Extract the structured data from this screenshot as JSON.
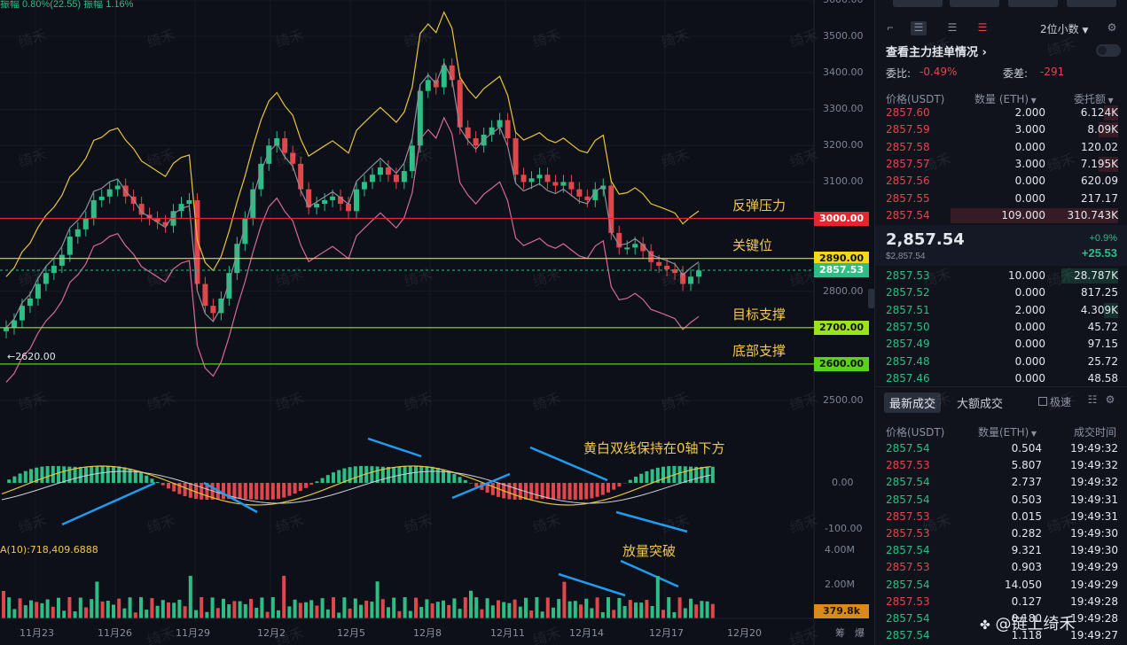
{
  "chart": {
    "top_label": "振幅 0.80%(22.55)  振幅 1.16%",
    "price_ticks": [
      "3600.00",
      "3500.00",
      "3400.00",
      "3300.00",
      "3200.00",
      "3100.00",
      "2800.00",
      "2500.00"
    ],
    "price_tick_values": [
      3600,
      3500,
      3400,
      3300,
      3200,
      3100,
      2800,
      2500
    ],
    "low_marker": "←2620.00",
    "macd_ticks": [
      "0.00",
      "-100.00"
    ],
    "volume_ticks": [
      "4.00M",
      "2.00M"
    ],
    "volume_label": "A(10):718,409.6888",
    "volume_current": "379.8k",
    "dates": [
      "11月23",
      "11月26",
      "11月29",
      "12月2",
      "12月5",
      "12月8",
      "12月11",
      "12月14",
      "12月17",
      "12月20"
    ],
    "axis_corner_labels": [
      "筹",
      "爆"
    ],
    "watermark_text": "绮禾",
    "levels": [
      {
        "label": "3000.00",
        "price": 3000,
        "annotation": "反弹压力",
        "color": "#e5262e"
      },
      {
        "label": "2890.00",
        "price": 2890,
        "annotation": "关键位",
        "color": "#f2d81a"
      },
      {
        "label": "2857.53",
        "price": 2857.53,
        "annotation": "",
        "color": "#2ebd85"
      },
      {
        "label": "2700.00",
        "price": 2700,
        "annotation": "目标支撑",
        "color": "#9be31c"
      },
      {
        "label": "2600.00",
        "price": 2600,
        "annotation": "底部支撑",
        "color": "#58d21a"
      }
    ],
    "macd_annotation": "黄白双线保持在0轴下方",
    "volume_annotation": "放量突破",
    "footer_watermark": "@链上绮禾"
  },
  "toolbar": {
    "precision": "2位小数",
    "main_order_link": "查看主力挂单情况",
    "ratio_label": "委比:",
    "ratio_value": "-0.49%",
    "diff_label": "委差:",
    "diff_value": "-291"
  },
  "orderbook": {
    "headers": [
      "价格(USDT)",
      "数量 (ETH)",
      "委托额"
    ],
    "asks": [
      {
        "price": "2857.60",
        "qty": "2.000",
        "amount": "6.124K"
      },
      {
        "price": "2857.59",
        "qty": "3.000",
        "amount": "8.09K"
      },
      {
        "price": "2857.58",
        "qty": "0.000",
        "amount": "120.02"
      },
      {
        "price": "2857.57",
        "qty": "3.000",
        "amount": "7.195K"
      },
      {
        "price": "2857.56",
        "qty": "0.000",
        "amount": "620.09"
      },
      {
        "price": "2857.55",
        "qty": "0.000",
        "amount": "217.17"
      },
      {
        "price": "2857.54",
        "qty": "109.000",
        "amount": "310.743K"
      }
    ],
    "last_price": "2,857.54",
    "last_price_usd": "$2,857.54",
    "change_pct": "+0.9%",
    "change_abs": "+25.53",
    "bids": [
      {
        "price": "2857.53",
        "qty": "10.000",
        "amount": "28.787K"
      },
      {
        "price": "2857.52",
        "qty": "0.000",
        "amount": "817.25"
      },
      {
        "price": "2857.51",
        "qty": "2.000",
        "amount": "4.309K"
      },
      {
        "price": "2857.50",
        "qty": "0.000",
        "amount": "45.72"
      },
      {
        "price": "2857.49",
        "qty": "0.000",
        "amount": "97.15"
      },
      {
        "price": "2857.48",
        "qty": "0.000",
        "amount": "25.72"
      },
      {
        "price": "2857.46",
        "qty": "0.000",
        "amount": "48.58"
      }
    ]
  },
  "trades": {
    "tabs": [
      "最新成交",
      "大额成交"
    ],
    "fast_label": "极速",
    "headers": [
      "价格(USDT)",
      "数量(ETH)",
      "成交时间"
    ],
    "rows": [
      {
        "price": "2857.54",
        "qty": "0.504",
        "time": "19:49:32",
        "side": "buy"
      },
      {
        "price": "2857.53",
        "qty": "5.807",
        "time": "19:49:32",
        "side": "sell"
      },
      {
        "price": "2857.54",
        "qty": "2.737",
        "time": "19:49:32",
        "side": "buy"
      },
      {
        "price": "2857.54",
        "qty": "0.503",
        "time": "19:49:31",
        "side": "buy"
      },
      {
        "price": "2857.53",
        "qty": "0.015",
        "time": "19:49:31",
        "side": "sell"
      },
      {
        "price": "2857.53",
        "qty": "0.282",
        "time": "19:49:30",
        "side": "sell"
      },
      {
        "price": "2857.54",
        "qty": "9.321",
        "time": "19:49:30",
        "side": "buy"
      },
      {
        "price": "2857.53",
        "qty": "0.903",
        "time": "19:49:29",
        "side": "sell"
      },
      {
        "price": "2857.54",
        "qty": "14.050",
        "time": "19:49:29",
        "side": "buy"
      },
      {
        "price": "2857.53",
        "qty": "0.127",
        "time": "19:49:28",
        "side": "sell"
      },
      {
        "price": "2857.54",
        "qty": "0.180",
        "time": "19:49:28",
        "side": "buy"
      },
      {
        "price": "2857.54",
        "qty": "1.118",
        "time": "19:49:27",
        "side": "buy"
      }
    ]
  }
}
